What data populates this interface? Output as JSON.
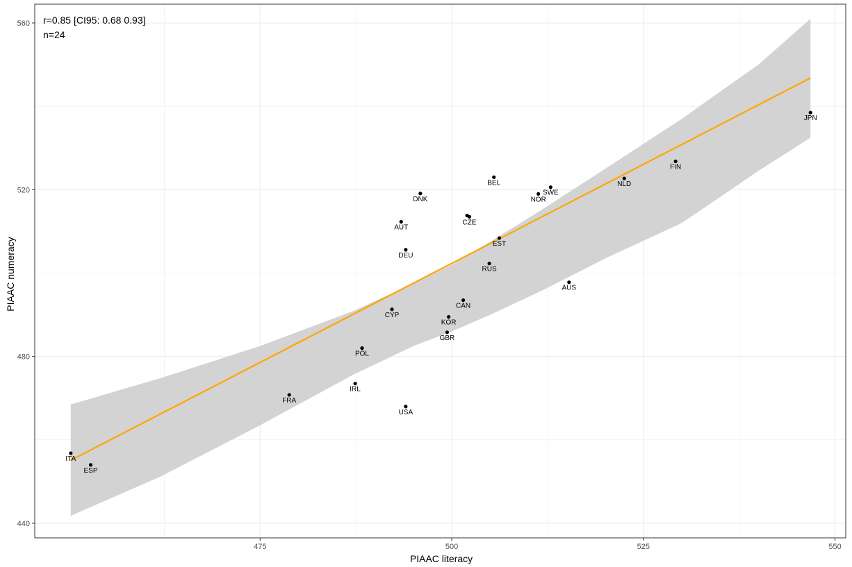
{
  "chart_data": {
    "type": "scatter",
    "title": "",
    "xlabel": "PIAAC literacy",
    "ylabel": "PIAAC numeracy",
    "xlim": [
      445.6,
      551.4
    ],
    "ylim": [
      436.5,
      564.5
    ],
    "x_ticks": [
      475,
      500,
      525,
      550
    ],
    "y_ticks": [
      440,
      480,
      520,
      560
    ],
    "grid": true,
    "annotations": [
      "r=0.85 [CI95: 0.68 0.93]",
      "n=24"
    ],
    "colors": {
      "points": "#000000",
      "fit_line": "#FFA500",
      "confidence_band": "#D3D3D3",
      "grid": "#EBEBEB",
      "panel_border": "#333333"
    },
    "points": [
      {
        "label": "JPN",
        "x": 546.8,
        "y": 538.5
      },
      {
        "label": "FIN",
        "x": 529.2,
        "y": 526.8
      },
      {
        "label": "NLD",
        "x": 522.5,
        "y": 522.7
      },
      {
        "label": "SWE",
        "x": 512.9,
        "y": 520.6
      },
      {
        "label": "NOR",
        "x": 511.3,
        "y": 519.0
      },
      {
        "label": "BEL",
        "x": 505.5,
        "y": 523.0
      },
      {
        "label": "DNK",
        "x": 495.9,
        "y": 519.1
      },
      {
        "label": "CZE",
        "x": 502.3,
        "y": 513.5
      },
      {
        "label": "AUT",
        "x": 493.4,
        "y": 512.3
      },
      {
        "label": "EST",
        "x": 506.2,
        "y": 508.4
      },
      {
        "label": "DEU",
        "x": 494.0,
        "y": 505.6
      },
      {
        "label": "RUS",
        "x": 504.9,
        "y": 502.3
      },
      {
        "label": "AUS",
        "x": 515.3,
        "y": 497.8
      },
      {
        "label": "CAN",
        "x": 501.5,
        "y": 493.5
      },
      {
        "label": "CYP",
        "x": 492.2,
        "y": 491.3
      },
      {
        "label": "KOR",
        "x": 499.6,
        "y": 489.5
      },
      {
        "label": "GBR",
        "x": 499.4,
        "y": 485.8
      },
      {
        "label": "POL",
        "x": 488.3,
        "y": 482.0
      },
      {
        "label": "IRL",
        "x": 487.4,
        "y": 473.5
      },
      {
        "label": "FRA",
        "x": 478.8,
        "y": 470.8
      },
      {
        "label": "USA",
        "x": 494.0,
        "y": 468.0
      },
      {
        "label": "ITA",
        "x": 450.3,
        "y": 456.8
      },
      {
        "label": "ESP",
        "x": 452.9,
        "y": 454.0
      }
    ],
    "hidden_points": [
      {
        "label": "",
        "x": 502.0,
        "y": 513.8
      }
    ],
    "fit_line": {
      "x": [
        450.3,
        546.8
      ],
      "y": [
        455.1,
        546.8
      ]
    },
    "confidence_band": {
      "x": [
        450.3,
        462.0,
        475.0,
        487.0,
        495.0,
        500.0,
        505.0,
        512.0,
        520.0,
        530.0,
        540.0,
        546.8
      ],
      "upper": [
        468.5,
        474.8,
        482.5,
        490.8,
        497.5,
        502.0,
        507.5,
        515.5,
        525.0,
        537.0,
        550.0,
        561.0
      ],
      "lower": [
        441.8,
        451.2,
        463.5,
        475.5,
        482.5,
        486.0,
        490.0,
        496.0,
        503.5,
        512.0,
        524.5,
        532.5
      ]
    }
  }
}
